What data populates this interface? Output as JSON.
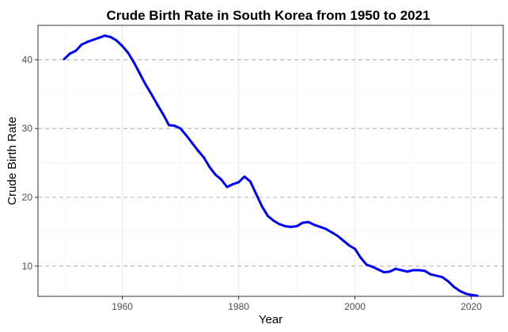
{
  "chart_data": {
    "type": "line",
    "title": "Crude Birth Rate in South Korea from 1950 to 2021",
    "xlabel": "Year",
    "ylabel": "Crude Birth Rate",
    "xlim": [
      1945.5,
      2025.5
    ],
    "ylim": [
      5.6,
      45.0
    ],
    "x_ticks": [
      1960,
      1980,
      2000,
      2020
    ],
    "y_ticks": [
      10,
      20,
      30,
      40
    ],
    "grid": true,
    "major_y_gridline_style": "dashed",
    "legend": "none",
    "series": [
      {
        "color": "#0000ff",
        "x": [
          1950,
          1951,
          1952,
          1953,
          1954,
          1955,
          1956,
          1957,
          1958,
          1959,
          1960,
          1961,
          1962,
          1963,
          1964,
          1965,
          1966,
          1967,
          1968,
          1969,
          1970,
          1971,
          1972,
          1973,
          1974,
          1975,
          1976,
          1977,
          1978,
          1979,
          1980,
          1981,
          1982,
          1983,
          1984,
          1985,
          1986,
          1987,
          1988,
          1989,
          1990,
          1991,
          1992,
          1993,
          1994,
          1995,
          1996,
          1997,
          1998,
          1999,
          2000,
          2001,
          2002,
          2003,
          2004,
          2005,
          2006,
          2007,
          2008,
          2009,
          2010,
          2011,
          2012,
          2013,
          2014,
          2015,
          2016,
          2017,
          2018,
          2019,
          2020,
          2021
        ],
        "y": [
          40.1,
          40.9,
          41.3,
          42.2,
          42.6,
          42.9,
          43.2,
          43.5,
          43.3,
          42.8,
          42.0,
          41.0,
          39.6,
          38.0,
          36.4,
          35.0,
          33.5,
          32.1,
          30.5,
          30.4,
          30.0,
          29.0,
          27.9,
          26.8,
          25.8,
          24.4,
          23.3,
          22.6,
          21.5,
          21.9,
          22.2,
          23.0,
          22.3,
          20.5,
          18.7,
          17.3,
          16.6,
          16.1,
          15.8,
          15.7,
          15.8,
          16.3,
          16.4,
          16.0,
          15.7,
          15.4,
          14.9,
          14.4,
          13.7,
          13.0,
          12.5,
          11.2,
          10.2,
          9.9,
          9.5,
          9.1,
          9.2,
          9.6,
          9.4,
          9.2,
          9.4,
          9.4,
          9.3,
          8.8,
          8.6,
          8.4,
          7.8,
          7.0,
          6.4,
          6.0,
          5.8,
          5.7
        ]
      }
    ]
  }
}
